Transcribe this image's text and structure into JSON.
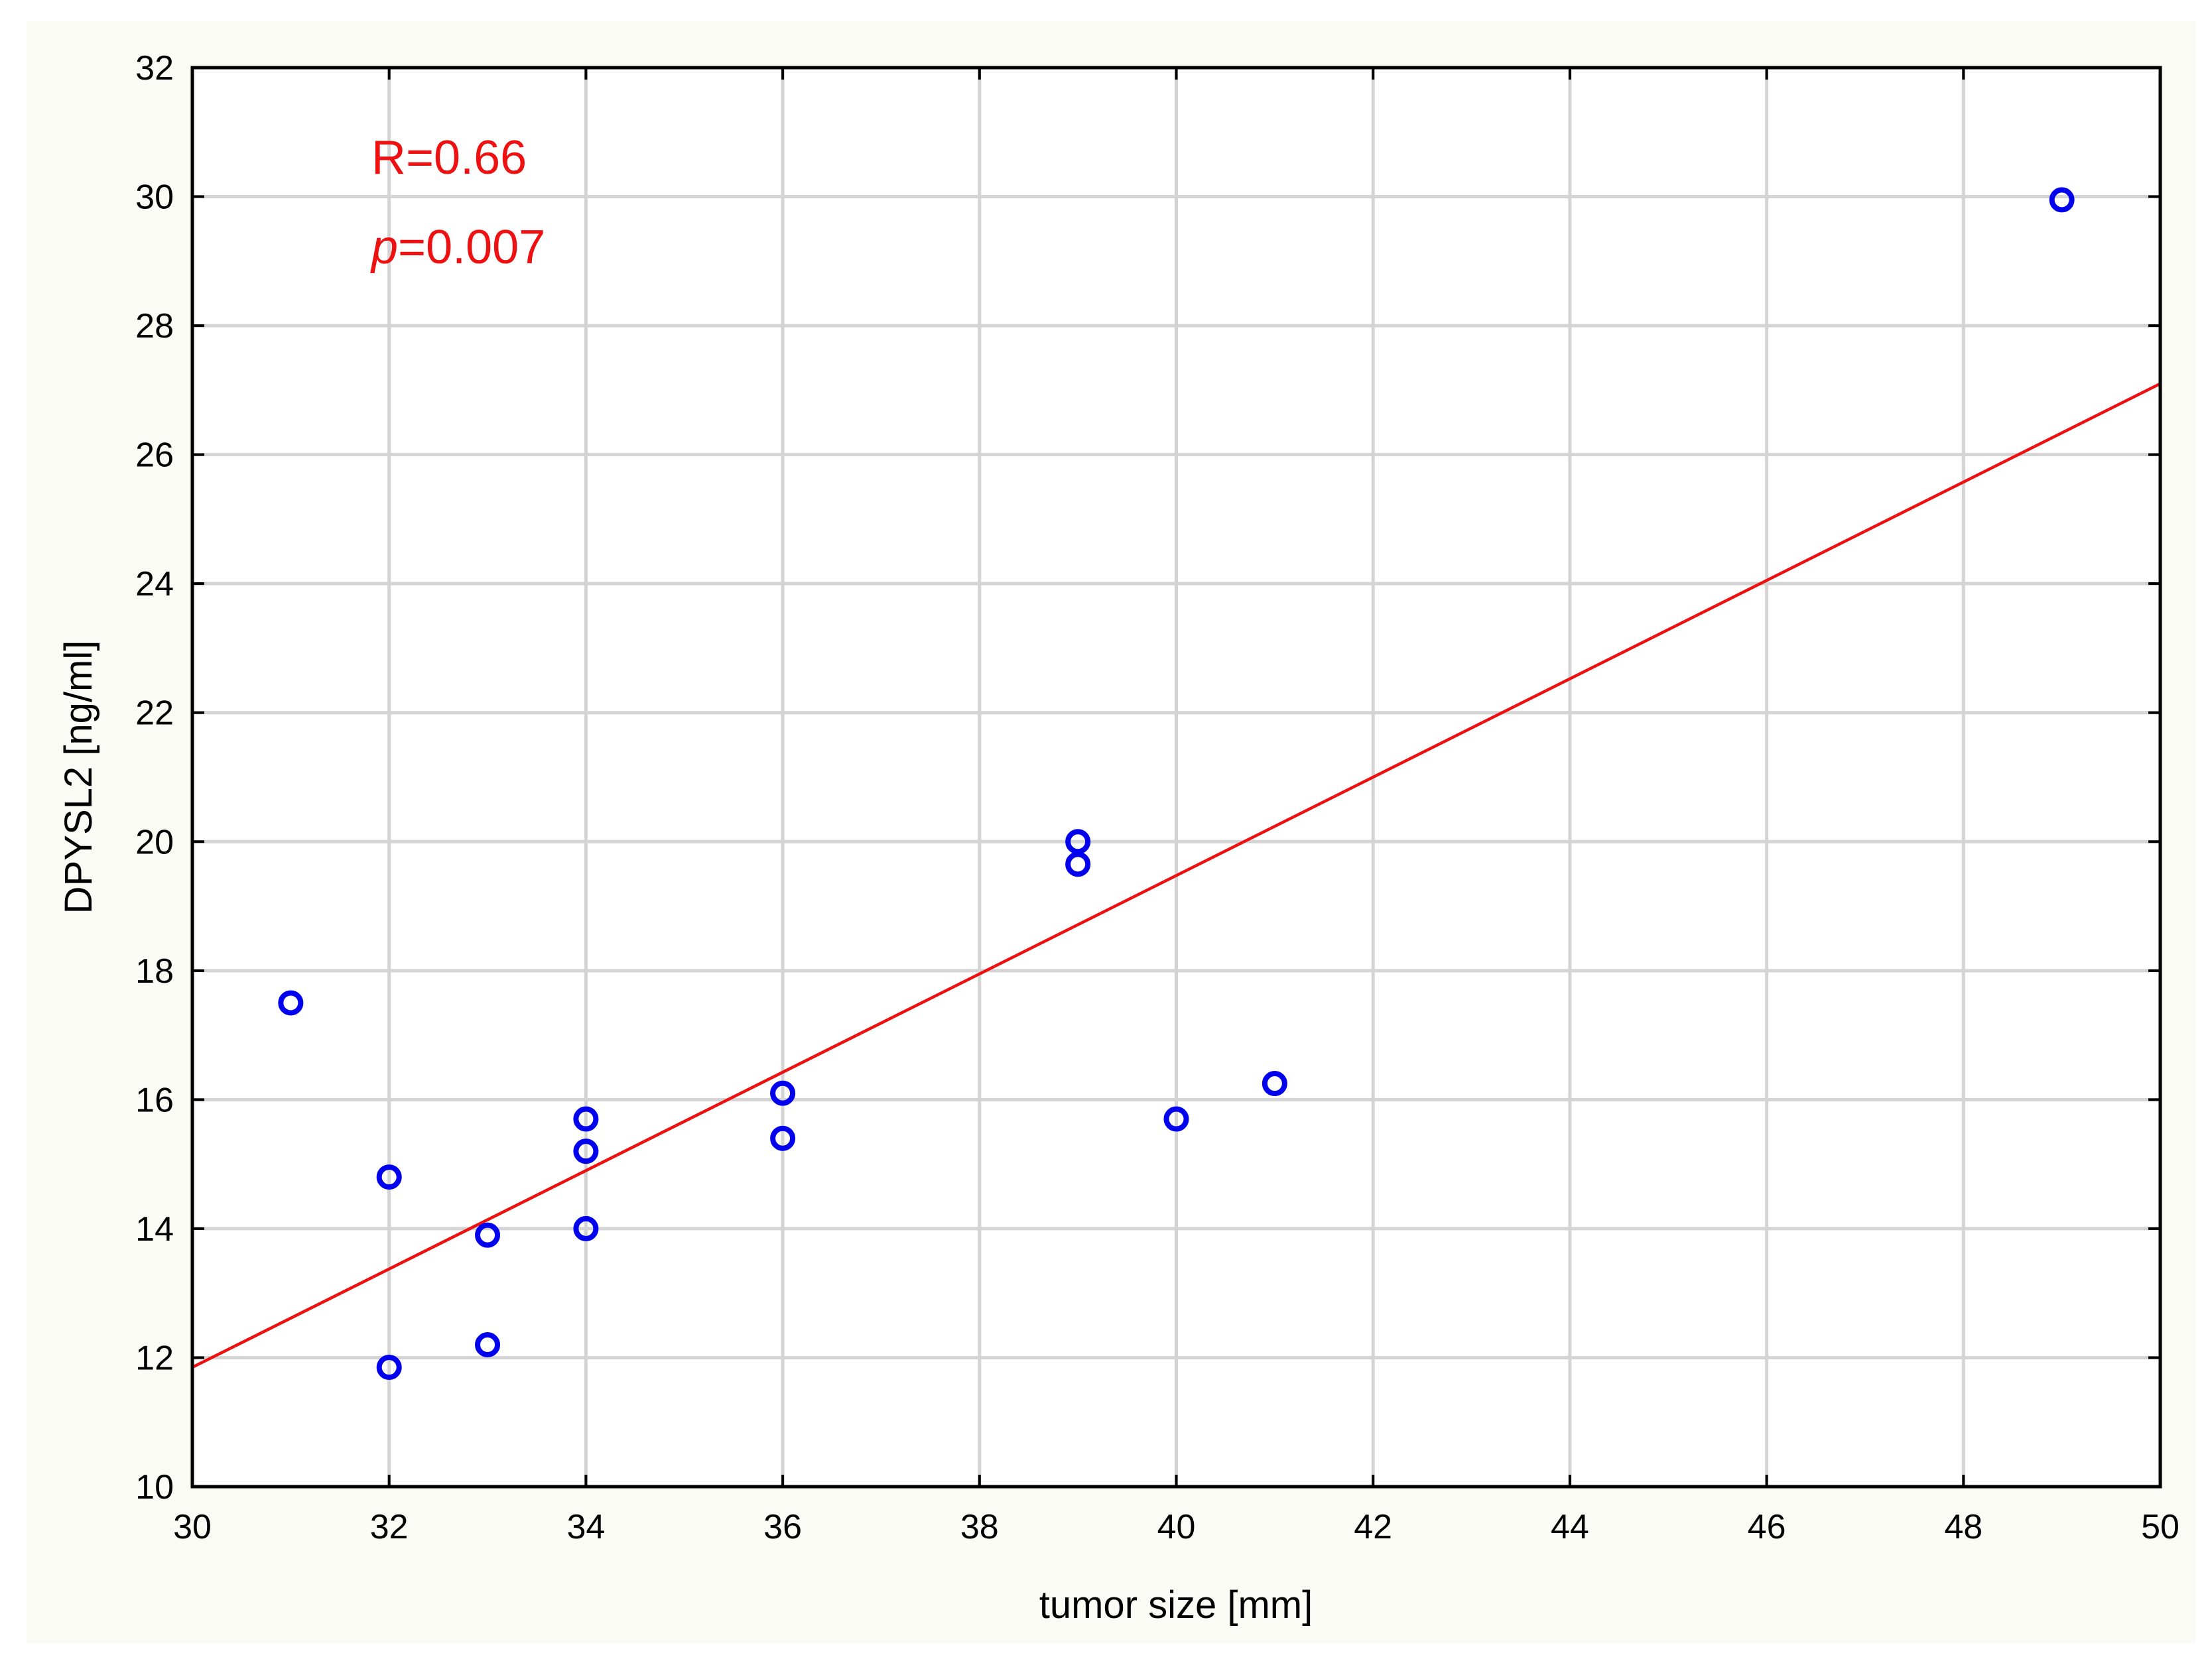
{
  "chart_data": {
    "type": "scatter",
    "title": "",
    "xlabel": "tumor size [mm]",
    "ylabel": "DPYSL2 [ng/ml]",
    "xlim": [
      30,
      50
    ],
    "ylim": [
      10,
      32
    ],
    "x_ticks": [
      30,
      32,
      34,
      36,
      38,
      40,
      42,
      44,
      46,
      48,
      50
    ],
    "y_ticks": [
      10,
      12,
      14,
      16,
      18,
      20,
      22,
      24,
      26,
      28,
      30,
      32
    ],
    "grid": true,
    "points": [
      {
        "x": 31,
        "y": 17.5
      },
      {
        "x": 32,
        "y": 14.8
      },
      {
        "x": 32,
        "y": 11.85
      },
      {
        "x": 33,
        "y": 13.9
      },
      {
        "x": 33,
        "y": 12.2
      },
      {
        "x": 34,
        "y": 15.7
      },
      {
        "x": 34,
        "y": 15.2
      },
      {
        "x": 34,
        "y": 14.0
      },
      {
        "x": 36,
        "y": 16.1
      },
      {
        "x": 36,
        "y": 15.4
      },
      {
        "x": 39,
        "y": 20.0
      },
      {
        "x": 39,
        "y": 19.65
      },
      {
        "x": 40,
        "y": 15.7
      },
      {
        "x": 41,
        "y": 16.25
      },
      {
        "x": 49,
        "y": 29.95
      }
    ],
    "regression_line": {
      "x": [
        30,
        50
      ],
      "y": [
        11.85,
        27.1
      ]
    },
    "annotations": {
      "r_text": "R=0.66",
      "p_symbol": "p",
      "p_value": "=0.007"
    },
    "colors": {
      "points": "#0000ee",
      "fit_line": "#ee1111",
      "annotation": "#ee1111"
    }
  }
}
